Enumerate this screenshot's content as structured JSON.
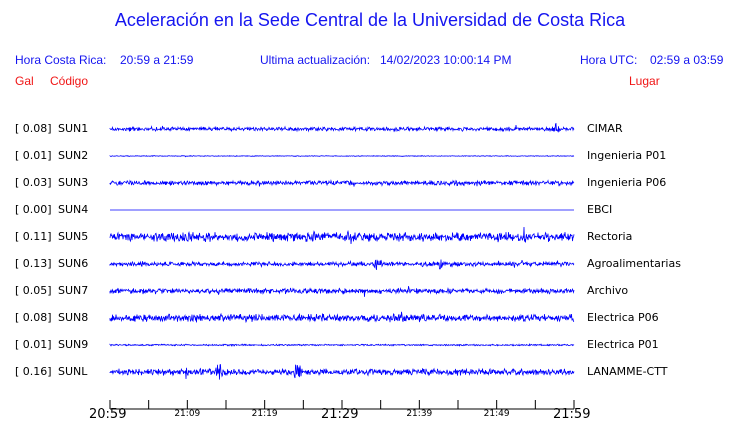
{
  "title": "Aceleración en la Sede Central de la Universidad de Costa Rica",
  "header": {
    "hora_cr_label": "Hora Costa Rica:",
    "hora_cr_value": "20:59 a 21:59",
    "update_label": "Ultima actualización:",
    "update_value": "14/02/2023 10:00:14 PM",
    "hora_utc_label": "Hora UTC:",
    "hora_utc_value": "02:59 a 03:59"
  },
  "columns": {
    "gal": "Gal",
    "codigo": "Código",
    "lugar": "Lugar"
  },
  "trace_color": "#0000ff",
  "stations": [
    {
      "gal": "[  0.08]",
      "code": "SUN1",
      "place": "CIMAR"
    },
    {
      "gal": "[  0.01]",
      "code": "SUN2",
      "place": "Ingenieria P01"
    },
    {
      "gal": "[  0.03]",
      "code": "SUN3",
      "place": "Ingenieria P06"
    },
    {
      "gal": "[  0.00]",
      "code": "SUN4",
      "place": "EBCI"
    },
    {
      "gal": "[  0.11]",
      "code": "SUN5",
      "place": "Rectoria"
    },
    {
      "gal": "[  0.13]",
      "code": "SUN6",
      "place": "Agroalimentarias"
    },
    {
      "gal": "[  0.05]",
      "code": "SUN7",
      "place": "Archivo"
    },
    {
      "gal": "[  0.08]",
      "code": "SUN8",
      "place": "Electrica P06"
    },
    {
      "gal": "[  0.01]",
      "code": "SUN9",
      "place": "Electrica P01"
    },
    {
      "gal": "[  0.16]",
      "code": "SUNL",
      "place": "LANAMME-CTT"
    }
  ],
  "time_axis": {
    "major": [
      "20:59",
      "21:29",
      "21:59"
    ],
    "minor": [
      "21:09",
      "21:19",
      "21:39",
      "21:49"
    ]
  }
}
